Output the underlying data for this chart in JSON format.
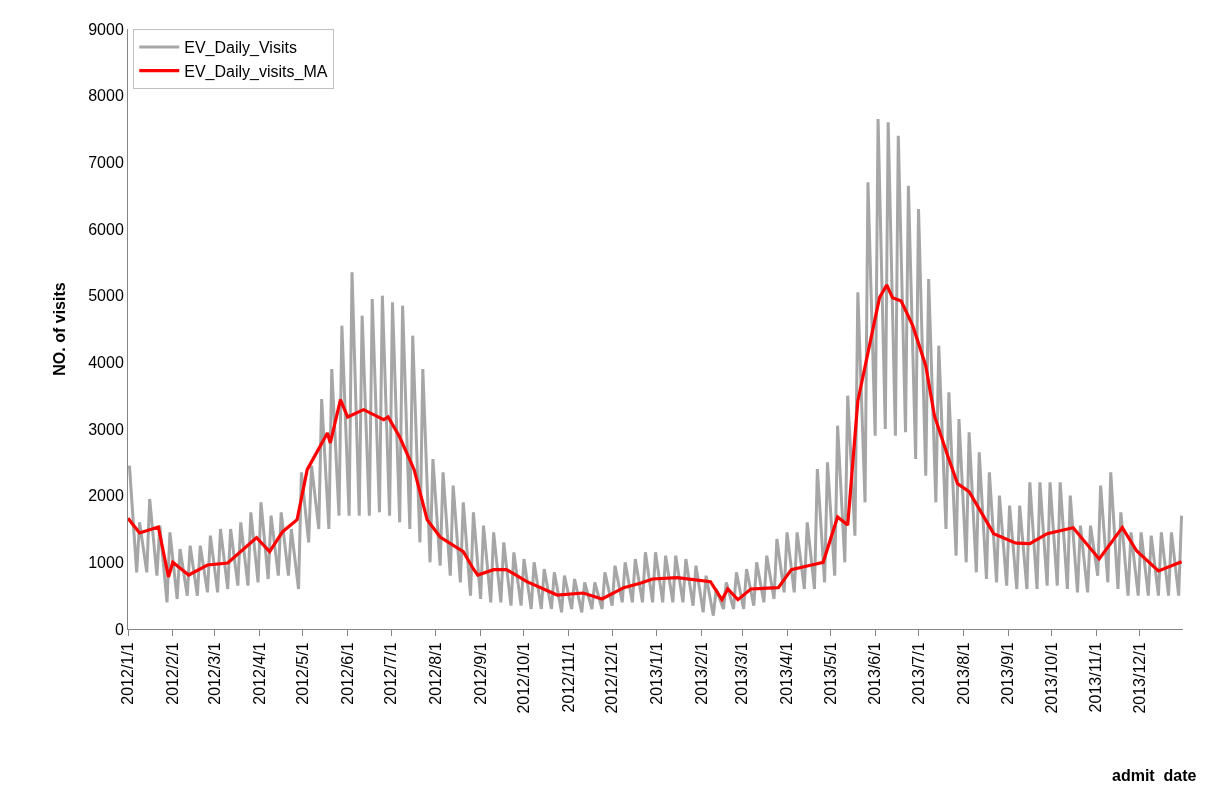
{
  "chart_data": {
    "type": "line",
    "xlabel": "admit  date",
    "ylabel": "NO. of visits",
    "xlim": [
      "2012-01-01",
      "2013-12-31"
    ],
    "xticks": [
      {
        "value": "2012-01-01",
        "label": "2012/1/1"
      },
      {
        "value": "2012-02-01",
        "label": "2012/2/1"
      },
      {
        "value": "2012-03-01",
        "label": "2012/3/1"
      },
      {
        "value": "2012-04-01",
        "label": "2012/4/1"
      },
      {
        "value": "2012-05-01",
        "label": "2012/5/1"
      },
      {
        "value": "2012-06-01",
        "label": "2012/6/1"
      },
      {
        "value": "2012-07-01",
        "label": "2012/7/1"
      },
      {
        "value": "2012-08-01",
        "label": "2012/8/1"
      },
      {
        "value": "2012-09-01",
        "label": "2012/9/1"
      },
      {
        "value": "2012-10-01",
        "label": "2012/10/1"
      },
      {
        "value": "2012-11-01",
        "label": "2012/11/1"
      },
      {
        "value": "2012-12-01",
        "label": "2012/12/1"
      },
      {
        "value": "2013-01-01",
        "label": "2013/1/1"
      },
      {
        "value": "2013-02-01",
        "label": "2013/2/1"
      },
      {
        "value": "2013-03-01",
        "label": "2013/3/1"
      },
      {
        "value": "2013-04-01",
        "label": "2013/4/1"
      },
      {
        "value": "2013-05-01",
        "label": "2013/5/1"
      },
      {
        "value": "2013-06-01",
        "label": "2013/6/1"
      },
      {
        "value": "2013-07-01",
        "label": "2013/7/1"
      },
      {
        "value": "2013-08-01",
        "label": "2013/8/1"
      },
      {
        "value": "2013-09-01",
        "label": "2013/9/1"
      },
      {
        "value": "2013-10-01",
        "label": "2013/10/1"
      },
      {
        "value": "2013-11-01",
        "label": "2013/11/1"
      },
      {
        "value": "2013-12-01",
        "label": "2013/12/1"
      }
    ],
    "ylim": [
      0,
      9000
    ],
    "yticks": [
      0,
      1000,
      2000,
      3000,
      4000,
      5000,
      6000,
      7000,
      8000,
      9000
    ],
    "legend": "top left",
    "marker": "none",
    "line_style": "solid",
    "series": [
      {
        "name": "EV_Daily_Visits",
        "color": "#a6a6a6",
        "x": [
          "2012-01-02",
          "2012-01-07",
          "2012-01-09",
          "2012-01-14",
          "2012-01-16",
          "2012-01-21",
          "2012-01-23",
          "2012-01-28",
          "2012-01-30",
          "2012-02-04",
          "2012-02-06",
          "2012-02-11",
          "2012-02-13",
          "2012-02-18",
          "2012-02-20",
          "2012-02-25",
          "2012-02-27",
          "2012-03-03",
          "2012-03-05",
          "2012-03-10",
          "2012-03-12",
          "2012-03-17",
          "2012-03-19",
          "2012-03-24",
          "2012-03-26",
          "2012-03-31",
          "2012-04-02",
          "2012-04-07",
          "2012-04-09",
          "2012-04-14",
          "2012-04-16",
          "2012-04-21",
          "2012-04-23",
          "2012-04-28",
          "2012-04-30",
          "2012-05-05",
          "2012-05-07",
          "2012-05-12",
          "2012-05-14",
          "2012-05-19",
          "2012-05-21",
          "2012-05-26",
          "2012-05-28",
          "2012-06-02",
          "2012-06-04",
          "2012-06-09",
          "2012-06-11",
          "2012-06-16",
          "2012-06-18",
          "2012-06-23",
          "2012-06-25",
          "2012-06-30",
          "2012-07-02",
          "2012-07-07",
          "2012-07-09",
          "2012-07-14",
          "2012-07-16",
          "2012-07-21",
          "2012-07-23",
          "2012-07-28",
          "2012-07-30",
          "2012-08-04",
          "2012-08-06",
          "2012-08-11",
          "2012-08-13",
          "2012-08-18",
          "2012-08-20",
          "2012-08-25",
          "2012-08-27",
          "2012-09-01",
          "2012-09-03",
          "2012-09-08",
          "2012-09-10",
          "2012-09-15",
          "2012-09-17",
          "2012-09-22",
          "2012-09-24",
          "2012-09-29",
          "2012-10-01",
          "2012-10-06",
          "2012-10-08",
          "2012-10-13",
          "2012-10-15",
          "2012-10-20",
          "2012-10-22",
          "2012-10-27",
          "2012-10-29",
          "2012-11-03",
          "2012-11-05",
          "2012-11-10",
          "2012-11-12",
          "2012-11-17",
          "2012-11-19",
          "2012-11-24",
          "2012-11-26",
          "2012-12-01",
          "2012-12-03",
          "2012-12-08",
          "2012-12-10",
          "2012-12-15",
          "2012-12-17",
          "2012-12-22",
          "2012-12-24",
          "2012-12-29",
          "2012-12-31",
          "2013-01-05",
          "2013-01-07",
          "2013-01-12",
          "2013-01-14",
          "2013-01-19",
          "2013-01-21",
          "2013-01-26",
          "2013-01-28",
          "2013-02-02",
          "2013-02-04",
          "2013-02-09",
          "2013-02-11",
          "2013-02-16",
          "2013-02-18",
          "2013-02-23",
          "2013-02-25",
          "2013-03-02",
          "2013-03-04",
          "2013-03-09",
          "2013-03-11",
          "2013-03-16",
          "2013-03-18",
          "2013-03-23",
          "2013-03-25",
          "2013-03-30",
          "2013-04-01",
          "2013-04-06",
          "2013-04-08",
          "2013-04-13",
          "2013-04-15",
          "2013-04-20",
          "2013-04-22",
          "2013-04-27",
          "2013-04-29",
          "2013-05-04",
          "2013-05-06",
          "2013-05-11",
          "2013-05-13",
          "2013-05-18",
          "2013-05-20",
          "2013-05-25",
          "2013-05-27",
          "2013-06-01",
          "2013-06-03",
          "2013-06-08",
          "2013-06-10",
          "2013-06-15",
          "2013-06-17",
          "2013-06-22",
          "2013-06-24",
          "2013-06-29",
          "2013-07-01",
          "2013-07-06",
          "2013-07-08",
          "2013-07-13",
          "2013-07-15",
          "2013-07-20",
          "2013-07-22",
          "2013-07-27",
          "2013-07-29",
          "2013-08-03",
          "2013-08-05",
          "2013-08-10",
          "2013-08-12",
          "2013-08-17",
          "2013-08-19",
          "2013-08-24",
          "2013-08-26",
          "2013-08-31",
          "2013-09-02",
          "2013-09-07",
          "2013-09-09",
          "2013-09-14",
          "2013-09-16",
          "2013-09-21",
          "2013-09-23",
          "2013-09-28",
          "2013-09-30",
          "2013-10-05",
          "2013-10-07",
          "2013-10-12",
          "2013-10-14",
          "2013-10-19",
          "2013-10-21",
          "2013-10-26",
          "2013-10-28",
          "2013-11-02",
          "2013-11-04",
          "2013-11-09",
          "2013-11-11",
          "2013-11-16",
          "2013-11-18",
          "2013-11-23",
          "2013-11-25",
          "2013-11-30",
          "2013-12-02",
          "2013-12-07",
          "2013-12-09",
          "2013-12-14",
          "2013-12-16",
          "2013-12-21",
          "2013-12-23",
          "2013-12-28",
          "2013-12-30"
        ],
        "values": [
          2450,
          850,
          1600,
          850,
          1950,
          800,
          1550,
          400,
          1450,
          450,
          1200,
          500,
          1250,
          500,
          1250,
          550,
          1400,
          550,
          1500,
          600,
          1500,
          650,
          1600,
          650,
          1750,
          700,
          1900,
          750,
          1700,
          800,
          1750,
          800,
          1500,
          600,
          2350,
          1300,
          2450,
          1500,
          3450,
          1500,
          3900,
          1700,
          4550,
          1700,
          5350,
          1700,
          4700,
          1700,
          4950,
          1750,
          5000,
          1700,
          4900,
          1600,
          4850,
          1500,
          4400,
          1300,
          3900,
          1000,
          2550,
          950,
          2350,
          800,
          2150,
          700,
          1900,
          500,
          1750,
          450,
          1550,
          400,
          1450,
          400,
          1300,
          350,
          1150,
          350,
          1050,
          300,
          1000,
          300,
          900,
          300,
          850,
          250,
          800,
          300,
          750,
          250,
          700,
          300,
          700,
          300,
          850,
          350,
          950,
          400,
          1000,
          400,
          1050,
          400,
          1150,
          400,
          1150,
          400,
          1100,
          400,
          1100,
          400,
          1050,
          350,
          950,
          250,
          800,
          200,
          600,
          300,
          700,
          300,
          850,
          300,
          900,
          350,
          1000,
          400,
          1100,
          450,
          1350,
          550,
          1450,
          550,
          1450,
          600,
          1600,
          600,
          2400,
          700,
          2500,
          800,
          3050,
          1000,
          3500,
          1400,
          5050,
          1900,
          6700,
          2900,
          7650,
          3000,
          7600,
          2900,
          7400,
          2950,
          6650,
          2550,
          6300,
          2300,
          5250,
          1900,
          4250,
          1500,
          3550,
          1100,
          3150,
          1000,
          2950,
          850,
          2650,
          750,
          2350,
          700,
          2000,
          650,
          1850,
          600,
          1850,
          600,
          2200,
          600,
          2200,
          650,
          2200,
          650,
          2200,
          600,
          2000,
          550,
          1550,
          550,
          1550,
          800,
          2150,
          700,
          2350,
          600,
          1750,
          500,
          1450,
          500,
          1450,
          500,
          1400,
          500,
          1450,
          500,
          1450,
          500,
          1700
        ]
      },
      {
        "name": "EV_Daily_visits_MA",
        "color": "#ff0000",
        "x": [
          "2012-01-01",
          "2012-01-09",
          "2012-01-22",
          "2012-01-29",
          "2012-02-01",
          "2012-02-12",
          "2012-02-25",
          "2012-03-10",
          "2012-03-30",
          "2012-04-08",
          "2012-04-17",
          "2012-04-27",
          "2012-05-04",
          "2012-05-18",
          "2012-05-20",
          "2012-05-27",
          "2012-06-01",
          "2012-06-12",
          "2012-06-26",
          "2012-06-29",
          "2012-07-07",
          "2012-07-17",
          "2012-07-26",
          "2012-08-04",
          "2012-08-20",
          "2012-08-27",
          "2012-08-30",
          "2012-09-10",
          "2012-09-19",
          "2012-10-03",
          "2012-10-24",
          "2012-11-11",
          "2012-11-24",
          "2012-12-09",
          "2012-12-21",
          "2012-12-29",
          "2013-01-15",
          "2013-02-07",
          "2013-02-15",
          "2013-02-19",
          "2013-02-26",
          "2013-03-07",
          "2013-03-26",
          "2013-04-04",
          "2013-04-18",
          "2013-04-26",
          "2013-05-06",
          "2013-05-13",
          "2013-05-20",
          "2013-06-04",
          "2013-06-09",
          "2013-06-13",
          "2013-06-19",
          "2013-06-27",
          "2013-07-06",
          "2013-07-12",
          "2013-07-21",
          "2013-07-28",
          "2013-08-05",
          "2013-08-22",
          "2013-09-06",
          "2013-09-16",
          "2013-09-28",
          "2013-10-16",
          "2013-11-03",
          "2013-11-19",
          "2013-11-29",
          "2013-12-14",
          "2013-12-30"
        ],
        "values": [
          1660,
          1440,
          1530,
          780,
          1000,
          810,
          960,
          990,
          1370,
          1160,
          1460,
          1640,
          2390,
          2940,
          2790,
          3440,
          3180,
          3290,
          3140,
          3180,
          2880,
          2390,
          1640,
          1380,
          1160,
          900,
          810,
          890,
          890,
          710,
          510,
          540,
          450,
          620,
          690,
          750,
          770,
          710,
          440,
          600,
          440,
          600,
          620,
          890,
          960,
          1000,
          1680,
          1560,
          3420,
          4970,
          5160,
          4970,
          4920,
          4550,
          3950,
          3200,
          2610,
          2180,
          2060,
          1430,
          1290,
          1280,
          1430,
          1520,
          1050,
          1520,
          1170,
          870,
          1010
        ]
      }
    ]
  }
}
